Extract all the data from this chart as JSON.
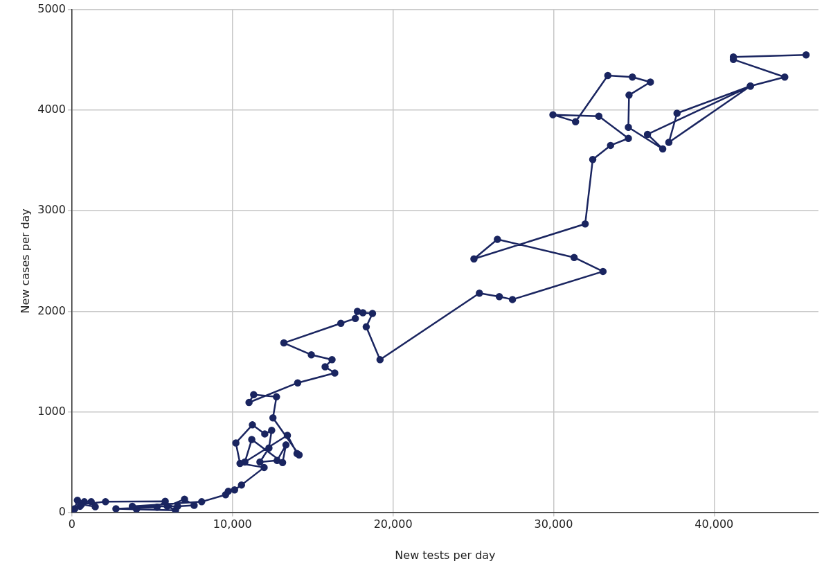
{
  "chart_data": {
    "type": "line",
    "xlabel": "New tests per day",
    "ylabel": "New cases per day",
    "xlim": [
      0,
      46500
    ],
    "ylim": [
      0,
      5000
    ],
    "xticks": [
      0,
      {
        "value": 10000,
        "label": "10,000"
      },
      {
        "value": 20000,
        "label": "20,000"
      },
      {
        "value": 30000,
        "label": "30,000"
      },
      {
        "value": 40000,
        "label": "40,000"
      }
    ],
    "yticks": [
      0,
      1000,
      2000,
      3000,
      4000,
      5000
    ],
    "grid": true,
    "legend": false,
    "marker": "circle",
    "line_style": "solid",
    "series": [
      {
        "color": "#1a2560",
        "x": [
          0,
          170,
          340,
          500,
          770,
          1200,
          1450,
          600,
          2090,
          5810,
          5300,
          2740,
          4020,
          6450,
          5940,
          7010,
          7610,
          6580,
          3760,
          8080,
          9570,
          9740,
          10130,
          10560,
          11970,
          10470,
          10210,
          11240,
          12010,
          12440,
          12270,
          11710,
          12780,
          13330,
          13120,
          11200,
          10770,
          13420,
          14020,
          14150,
          12520,
          12740,
          11320,
          11030,
          14060,
          16370,
          15770,
          16200,
          14910,
          13200,
          16750,
          17650,
          17780,
          18120,
          18720,
          18330,
          19190,
          25380,
          26620,
          27440,
          33080,
          31280,
          26500,
          25040,
          31970,
          32440,
          33550,
          34660,
          32820,
          29960,
          31370,
          33380,
          34910,
          36030,
          34700,
          34660,
          36800,
          35850,
          42260,
          37690,
          37180,
          42260,
          44400,
          41200,
          41200,
          45730
        ],
        "values": [
          0,
          35,
          120,
          60,
          105,
          105,
          55,
          80,
          105,
          110,
          50,
          35,
          30,
          20,
          60,
          130,
          70,
          60,
          60,
          105,
          175,
          210,
          223,
          272,
          446,
          487,
          690,
          870,
          780,
          815,
          640,
          500,
          515,
          670,
          495,
          724,
          500,
          766,
          585,
          571,
          940,
          1149,
          1170,
          1093,
          1288,
          1386,
          1448,
          1518,
          1567,
          1685,
          1880,
          1929,
          1999,
          1985,
          1978,
          1845,
          1518,
          2180,
          2145,
          2117,
          2396,
          2535,
          2716,
          2521,
          2869,
          3510,
          3650,
          3720,
          3940,
          3955,
          3886,
          4345,
          4330,
          4280,
          4150,
          3830,
          3615,
          3760,
          4240,
          3970,
          3680,
          4240,
          4330,
          4505,
          4530,
          4550
        ]
      }
    ]
  }
}
